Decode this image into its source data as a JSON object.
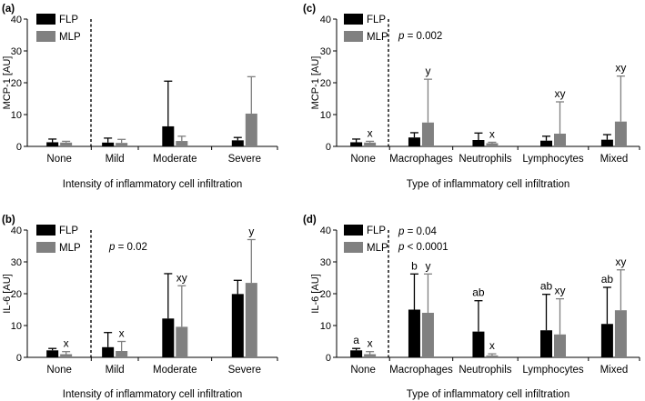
{
  "colors": {
    "FLP": "#000000",
    "MLP": "#808080"
  },
  "chart_data": [
    {
      "type": "bar",
      "panel": "(a)",
      "ylabel": "MCP-1 [AU]",
      "xlabel": "Intensity of inflammatory cell infiltration",
      "ylim": [
        0,
        40
      ],
      "yticks": [
        0,
        10,
        20,
        30,
        40
      ],
      "categories": [
        "None",
        "Mild",
        "Moderate",
        "Severe"
      ],
      "series": [
        {
          "name": "FLP",
          "values": [
            1.3,
            1.2,
            6.3,
            1.9
          ],
          "errors": [
            1.0,
            1.4,
            14.2,
            0.9
          ]
        },
        {
          "name": "MLP",
          "values": [
            1.2,
            1.1,
            1.7,
            10.3
          ],
          "errors": [
            0.4,
            1.1,
            1.5,
            11.6
          ]
        }
      ],
      "legend": "top-left",
      "separator_after": 0,
      "annotations": [],
      "sig_letters": []
    },
    {
      "type": "bar",
      "panel": "(b)",
      "ylabel": "IL-6 [AU]",
      "xlabel": "Intensity of inflammatory cell infiltration",
      "ylim": [
        0,
        40
      ],
      "yticks": [
        0,
        10,
        20,
        30,
        40
      ],
      "categories": [
        "None",
        "Mild",
        "Moderate",
        "Severe"
      ],
      "series": [
        {
          "name": "FLP",
          "values": [
            2.2,
            3.2,
            12.2,
            19.9
          ],
          "errors": [
            0.6,
            4.6,
            14.1,
            4.3
          ]
        },
        {
          "name": "MLP",
          "values": [
            1.0,
            2.0,
            9.6,
            23.4
          ],
          "errors": [
            0.8,
            3.0,
            12.9,
            13.6
          ]
        }
      ],
      "legend": "top-left",
      "separator_after": 0,
      "annotations": [
        {
          "prefix": "p",
          "text": " = 0.02"
        }
      ],
      "sig_letters": [
        {
          "cat": 0,
          "series": 1,
          "text": "x"
        },
        {
          "cat": 1,
          "series": 1,
          "text": "x"
        },
        {
          "cat": 2,
          "series": 1,
          "text": "xy"
        },
        {
          "cat": 3,
          "series": 1,
          "text": "y"
        }
      ]
    },
    {
      "type": "bar",
      "panel": "(c)",
      "ylabel": "MCP-1 [AU]",
      "xlabel": "Type of inflammatory cell infiltration",
      "ylim": [
        0,
        40
      ],
      "yticks": [
        0,
        10,
        20,
        30,
        40
      ],
      "categories": [
        "None",
        "Macrophages",
        "Neutrophils",
        "Lymphocytes",
        "Mixed"
      ],
      "series": [
        {
          "name": "FLP",
          "values": [
            1.3,
            2.8,
            2.0,
            1.8,
            2.1
          ],
          "errors": [
            1.0,
            1.5,
            2.2,
            1.4,
            1.6
          ]
        },
        {
          "name": "MLP",
          "values": [
            1.2,
            7.5,
            1.0,
            4.0,
            7.8
          ],
          "errors": [
            0.4,
            13.6,
            0.3,
            10.0,
            14.3
          ]
        }
      ],
      "legend": "top-left",
      "separator_after": 0,
      "annotations": [
        {
          "prefix": "p",
          "text": " = 0.002"
        }
      ],
      "sig_letters": [
        {
          "cat": 0,
          "series": 1,
          "text": "x"
        },
        {
          "cat": 1,
          "series": 1,
          "text": "y"
        },
        {
          "cat": 2,
          "series": 1,
          "text": "x"
        },
        {
          "cat": 3,
          "series": 1,
          "text": "xy"
        },
        {
          "cat": 4,
          "series": 1,
          "text": "xy"
        }
      ]
    },
    {
      "type": "bar",
      "panel": "(d)",
      "ylabel": "IL-6 [AU]",
      "xlabel": "Type of inflammatory cell infiltration",
      "ylim": [
        0,
        40
      ],
      "yticks": [
        0,
        10,
        20,
        30,
        40
      ],
      "categories": [
        "None",
        "Macrophages",
        "Neutrophils",
        "Lymphocytes",
        "Mixed"
      ],
      "series": [
        {
          "name": "FLP",
          "values": [
            2.2,
            15.0,
            8.1,
            8.5,
            10.5
          ],
          "errors": [
            0.6,
            11.2,
            9.7,
            11.3,
            11.5
          ]
        },
        {
          "name": "MLP",
          "values": [
            1.0,
            14.0,
            0.6,
            7.2,
            14.8
          ],
          "errors": [
            0.8,
            12.2,
            0.5,
            11.2,
            12.7
          ]
        }
      ],
      "legend": "top-left",
      "separator_after": 0,
      "annotations": [
        {
          "prefix": "p",
          "text": " = 0.04"
        },
        {
          "prefix": "p",
          "text": " < 0.0001"
        }
      ],
      "sig_letters": [
        {
          "cat": 0,
          "series": 0,
          "text": "a"
        },
        {
          "cat": 0,
          "series": 1,
          "text": "x"
        },
        {
          "cat": 1,
          "series": 0,
          "text": "b"
        },
        {
          "cat": 1,
          "series": 1,
          "text": "y"
        },
        {
          "cat": 2,
          "series": 0,
          "text": "ab"
        },
        {
          "cat": 2,
          "series": 1,
          "text": "x"
        },
        {
          "cat": 3,
          "series": 0,
          "text": "ab"
        },
        {
          "cat": 3,
          "series": 1,
          "text": "xy"
        },
        {
          "cat": 4,
          "series": 0,
          "text": "ab"
        },
        {
          "cat": 4,
          "series": 1,
          "text": "xy"
        }
      ]
    }
  ]
}
